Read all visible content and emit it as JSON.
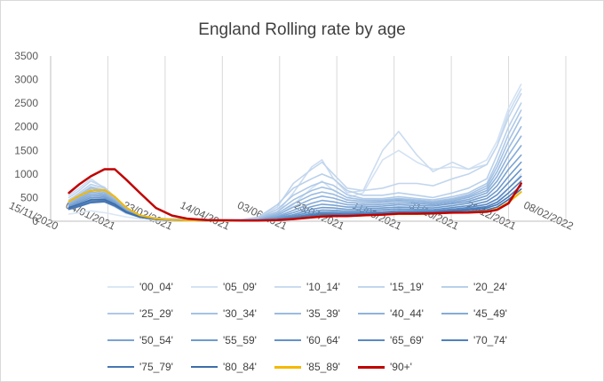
{
  "chart_data": {
    "type": "line",
    "title": "England Rolling rate by age",
    "xlabel": "",
    "ylabel": "",
    "x_axis": {
      "type": "date",
      "min": "2020-11-15",
      "max": "2022-02-08",
      "ticks": [
        "15/11/2020",
        "04/01/2021",
        "23/02/2021",
        "14/04/2021",
        "03/06/2021",
        "23/07/2021",
        "11/09/2021",
        "31/10/2021",
        "20/12/2021",
        "08/02/2022"
      ]
    },
    "ylim": [
      0,
      3500
    ],
    "yticks": [
      0,
      500,
      1000,
      1500,
      2000,
      2500,
      3000,
      3500
    ],
    "grid": "vertical",
    "legend_position": "bottom",
    "x": [
      "2020-12-01",
      "2020-12-10",
      "2020-12-20",
      "2021-01-01",
      "2021-01-10",
      "2021-01-20",
      "2021-02-01",
      "2021-02-15",
      "2021-03-01",
      "2021-03-15",
      "2021-04-01",
      "2021-04-15",
      "2021-05-01",
      "2021-05-15",
      "2021-06-01",
      "2021-06-15",
      "2021-07-01",
      "2021-07-10",
      "2021-07-20",
      "2021-08-01",
      "2021-08-15",
      "2021-09-01",
      "2021-09-15",
      "2021-10-01",
      "2021-10-15",
      "2021-11-01",
      "2021-11-15",
      "2021-12-01",
      "2021-12-10",
      "2021-12-20",
      "2021-12-31"
    ],
    "series": [
      {
        "name": "'00_04'",
        "color": "#dbe7f5",
        "values": [
          150,
          180,
          220,
          180,
          140,
          90,
          50,
          30,
          25,
          20,
          15,
          12,
          12,
          15,
          25,
          60,
          110,
          160,
          180,
          170,
          160,
          180,
          210,
          220,
          230,
          250,
          280,
          320,
          420,
          700,
          1000
        ]
      },
      {
        "name": "'05_09'",
        "color": "#d3e2f3",
        "values": [
          300,
          380,
          480,
          420,
          300,
          160,
          80,
          40,
          40,
          50,
          30,
          25,
          25,
          30,
          100,
          350,
          700,
          850,
          650,
          500,
          600,
          1300,
          1500,
          1250,
          1100,
          1150,
          1100,
          1300,
          1700,
          2400,
          2900
        ]
      },
      {
        "name": "'10_14'",
        "color": "#cbdcf0",
        "values": [
          550,
          700,
          900,
          700,
          480,
          230,
          100,
          50,
          50,
          60,
          40,
          30,
          30,
          45,
          180,
          600,
          1150,
          1300,
          900,
          600,
          650,
          1500,
          1900,
          1400,
          1050,
          1250,
          1100,
          1200,
          1600,
          2300,
          2800
        ]
      },
      {
        "name": "'15_19'",
        "color": "#c2d6ed",
        "values": [
          500,
          650,
          850,
          720,
          520,
          270,
          120,
          60,
          50,
          40,
          30,
          30,
          40,
          70,
          300,
          800,
          1100,
          1250,
          1000,
          700,
          650,
          700,
          800,
          800,
          750,
          900,
          1000,
          1200,
          1600,
          2200,
          2700
        ]
      },
      {
        "name": "'20_24'",
        "color": "#b9d0ea",
        "values": [
          450,
          600,
          780,
          700,
          520,
          280,
          130,
          65,
          45,
          30,
          25,
          25,
          35,
          80,
          350,
          700,
          900,
          1000,
          900,
          650,
          550,
          550,
          600,
          550,
          500,
          600,
          700,
          900,
          1400,
          2000,
          2500
        ]
      },
      {
        "name": "'25_29'",
        "color": "#afc9e7",
        "values": [
          420,
          560,
          730,
          660,
          500,
          270,
          125,
          60,
          40,
          28,
          22,
          22,
          30,
          60,
          250,
          550,
          750,
          830,
          760,
          560,
          480,
          480,
          520,
          480,
          450,
          520,
          600,
          800,
          1250,
          1850,
          2350
        ]
      },
      {
        "name": "'30_34'",
        "color": "#a5c2e4",
        "values": [
          400,
          540,
          700,
          640,
          480,
          260,
          120,
          58,
          38,
          26,
          20,
          20,
          28,
          50,
          200,
          450,
          650,
          720,
          660,
          500,
          450,
          450,
          480,
          450,
          420,
          480,
          560,
          750,
          1150,
          1700,
          2200
        ]
      },
      {
        "name": "'35_39'",
        "color": "#9bbbe0",
        "values": [
          380,
          510,
          660,
          610,
          460,
          250,
          115,
          55,
          35,
          25,
          19,
          19,
          25,
          42,
          160,
          370,
          560,
          620,
          570,
          450,
          420,
          430,
          460,
          430,
          400,
          460,
          530,
          700,
          1050,
          1550,
          2000
        ]
      },
      {
        "name": "'40_44'",
        "color": "#90b3dc",
        "values": [
          360,
          480,
          620,
          580,
          440,
          240,
          110,
          52,
          33,
          23,
          18,
          18,
          22,
          36,
          130,
          300,
          470,
          530,
          490,
          400,
          380,
          400,
          430,
          400,
          380,
          430,
          500,
          650,
          950,
          1400,
          1800
        ]
      },
      {
        "name": "'45_49'",
        "color": "#85abd7",
        "values": [
          340,
          450,
          580,
          550,
          420,
          230,
          105,
          50,
          32,
          22,
          17,
          17,
          20,
          30,
          100,
          230,
          380,
          440,
          410,
          350,
          340,
          360,
          390,
          370,
          350,
          400,
          460,
          600,
          850,
          1250,
          1600
        ]
      },
      {
        "name": "'50_54'",
        "color": "#7aa3d2",
        "values": [
          320,
          420,
          540,
          520,
          400,
          220,
          100,
          48,
          30,
          21,
          16,
          16,
          18,
          26,
          80,
          180,
          310,
          360,
          340,
          300,
          300,
          320,
          350,
          330,
          320,
          370,
          420,
          540,
          750,
          1100,
          1400
        ]
      },
      {
        "name": "'55_59'",
        "color": "#6f9bcd",
        "values": [
          300,
          390,
          500,
          490,
          380,
          210,
          96,
          46,
          29,
          20,
          15,
          15,
          16,
          22,
          65,
          140,
          250,
          290,
          280,
          250,
          260,
          280,
          300,
          290,
          280,
          330,
          380,
          480,
          650,
          950,
          1250
        ]
      },
      {
        "name": "'60_64'",
        "color": "#6492c8",
        "values": [
          280,
          360,
          460,
          460,
          360,
          200,
          92,
          44,
          27,
          19,
          14,
          14,
          15,
          20,
          52,
          110,
          200,
          235,
          230,
          210,
          220,
          240,
          260,
          250,
          245,
          290,
          330,
          420,
          560,
          820,
          1100
        ]
      },
      {
        "name": "'65_69'",
        "color": "#5a89c2",
        "values": [
          260,
          330,
          420,
          430,
          340,
          190,
          88,
          42,
          26,
          18,
          13,
          13,
          14,
          18,
          42,
          85,
          160,
          190,
          190,
          175,
          185,
          200,
          220,
          215,
          215,
          255,
          290,
          360,
          470,
          700,
          950
        ]
      },
      {
        "name": "'70_74'",
        "color": "#5080bb",
        "values": [
          250,
          310,
          390,
          410,
          320,
          180,
          84,
          40,
          25,
          17,
          12,
          12,
          13,
          16,
          36,
          70,
          130,
          160,
          160,
          150,
          160,
          175,
          190,
          190,
          195,
          230,
          260,
          310,
          400,
          600,
          850
        ]
      },
      {
        "name": "'75_79'",
        "color": "#4777b3",
        "values": [
          260,
          320,
          400,
          420,
          330,
          185,
          85,
          40,
          24,
          16,
          12,
          12,
          12,
          15,
          32,
          60,
          110,
          135,
          140,
          135,
          145,
          160,
          175,
          180,
          190,
          220,
          240,
          280,
          350,
          520,
          750
        ]
      },
      {
        "name": "'80_84'",
        "color": "#3e6eaa",
        "values": [
          290,
          360,
          450,
          460,
          360,
          200,
          90,
          41,
          24,
          16,
          12,
          12,
          12,
          14,
          28,
          52,
          95,
          120,
          125,
          120,
          130,
          145,
          160,
          165,
          175,
          200,
          210,
          240,
          300,
          460,
          680
        ]
      },
      {
        "name": "'85_89'",
        "color": "#f5b800",
        "values": [
          420,
          540,
          650,
          660,
          520,
          290,
          125,
          55,
          28,
          18,
          13,
          12,
          12,
          14,
          26,
          48,
          85,
          105,
          110,
          110,
          120,
          135,
          150,
          150,
          160,
          180,
          190,
          210,
          260,
          400,
          620
        ]
      },
      {
        "name": "'90+'",
        "color": "#c00000",
        "values": [
          600,
          780,
          950,
          1100,
          1100,
          880,
          600,
          280,
          120,
          50,
          25,
          18,
          15,
          15,
          24,
          45,
          80,
          100,
          110,
          110,
          125,
          140,
          160,
          160,
          165,
          180,
          185,
          200,
          240,
          380,
          800
        ]
      }
    ]
  }
}
